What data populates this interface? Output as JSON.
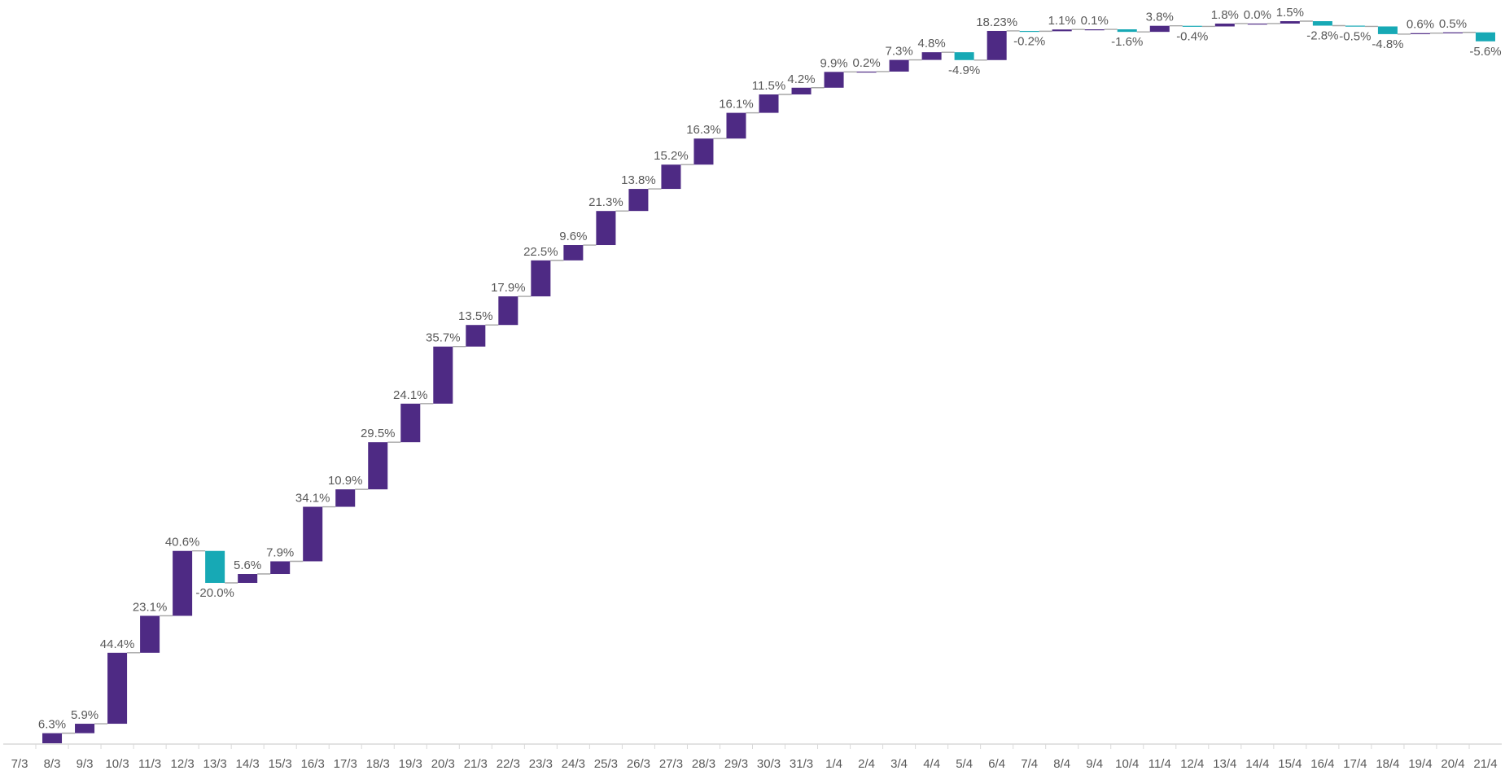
{
  "chart_data": {
    "type": "bar",
    "subtype": "waterfall",
    "title": "",
    "xlabel": "",
    "ylabel": "",
    "grid": false,
    "legend": "none",
    "colors": {
      "increase": "#4E2A84",
      "decrease": "#17A9B5",
      "connector": "#A6A6A6",
      "axis": "#D9D9D9",
      "text": "#595959"
    },
    "categories": [
      "7/3",
      "8/3",
      "9/3",
      "10/3",
      "11/3",
      "12/3",
      "13/3",
      "14/3",
      "15/3",
      "16/3",
      "17/3",
      "18/3",
      "19/3",
      "20/3",
      "21/3",
      "22/3",
      "23/3",
      "24/3",
      "25/3",
      "26/3",
      "27/3",
      "28/3",
      "29/3",
      "30/3",
      "31/3",
      "1/4",
      "2/4",
      "3/4",
      "4/4",
      "5/4",
      "6/4",
      "7/4",
      "8/4",
      "9/4",
      "10/4",
      "11/4",
      "12/4",
      "13/4",
      "14/4",
      "15/4",
      "16/4",
      "17/4",
      "18/4",
      "19/4",
      "20/4",
      "21/4"
    ],
    "values": [
      0,
      6.3,
      5.9,
      44.4,
      23.1,
      40.6,
      -20.0,
      5.6,
      7.9,
      34.1,
      10.9,
      29.5,
      24.1,
      35.7,
      13.5,
      17.9,
      22.5,
      9.6,
      21.3,
      13.8,
      15.2,
      16.3,
      16.1,
      11.5,
      4.2,
      9.9,
      0.2,
      7.3,
      4.8,
      -4.9,
      18.23,
      -0.2,
      1.1,
      0.1,
      -1.6,
      3.8,
      -0.4,
      1.8,
      0.0,
      1.5,
      -2.8,
      -0.5,
      -4.8,
      0.6,
      0.5,
      -5.6
    ],
    "labels": [
      "",
      "6.3%",
      "5.9%",
      "44.4%",
      "23.1%",
      "40.6%",
      "-20.0%",
      "5.6%",
      "7.9%",
      "34.1%",
      "10.9%",
      "29.5%",
      "24.1%",
      "35.7%",
      "13.5%",
      "17.9%",
      "22.5%",
      "9.6%",
      "21.3%",
      "13.8%",
      "15.2%",
      "16.3%",
      "16.1%",
      "11.5%",
      "4.2%",
      "9.9%",
      "0.2%",
      "7.3%",
      "4.8%",
      "-4.9%",
      "18.23%",
      "-0.2%",
      "1.1%",
      "0.1%",
      "-1.6%",
      "3.8%",
      "-0.4%",
      "1.8%",
      "0.0%",
      "1.5%",
      "-2.8%",
      "-0.5%",
      "-4.8%",
      "0.6%",
      "0.5%",
      "-5.6%"
    ]
  }
}
